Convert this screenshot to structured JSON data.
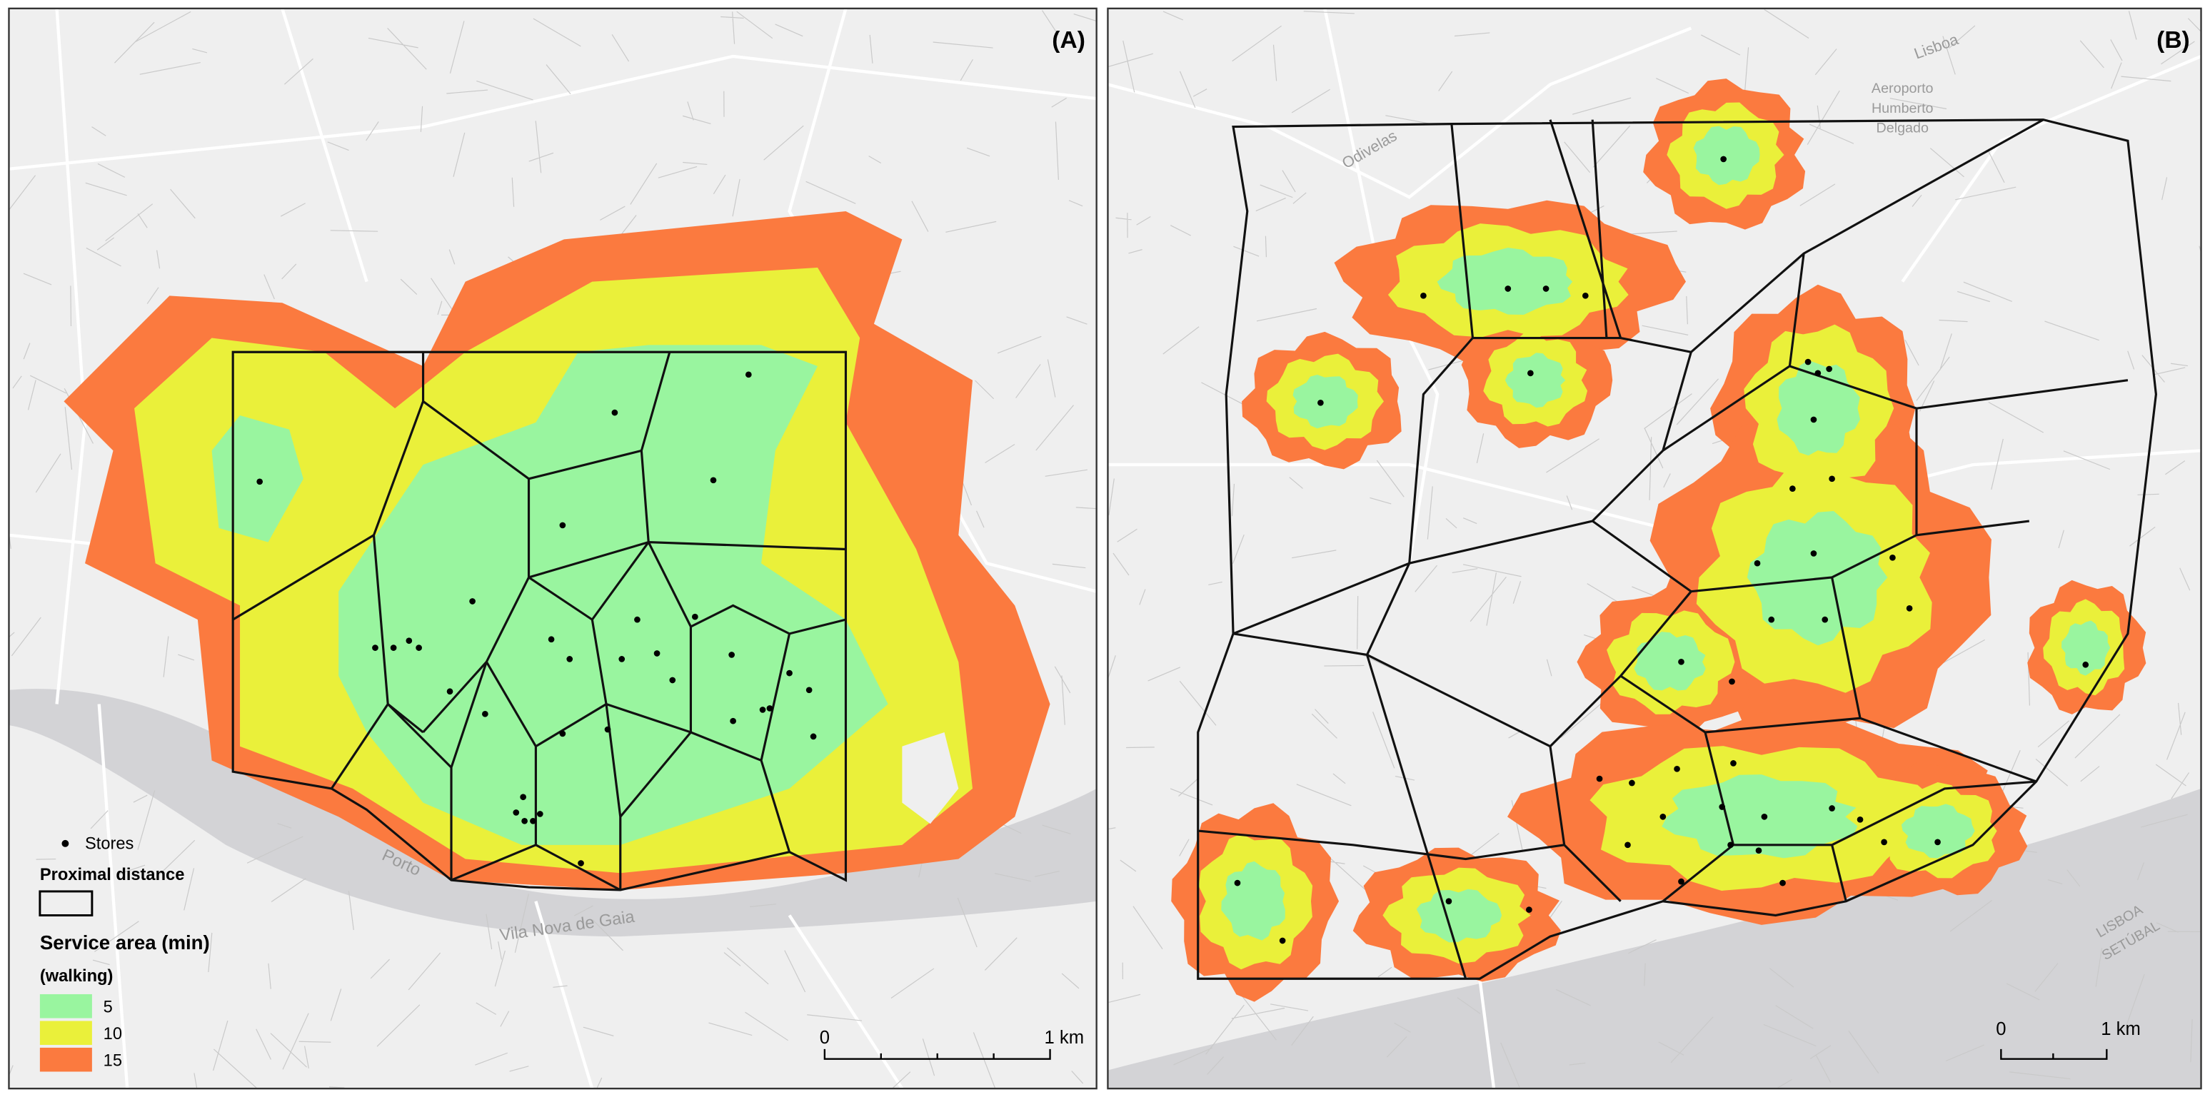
{
  "panels": [
    {
      "label": "(A)",
      "map_labels": [
        "Porto",
        "Vila Nova de Gaia"
      ],
      "scale_bar": {
        "start": "0",
        "end": "1 km"
      }
    },
    {
      "label": "(B)",
      "map_labels": [
        "Lisboa",
        "Aeroporto",
        "Humberto",
        "Delgado",
        "Odivelas",
        "LISBOA",
        "SETÚBAL"
      ],
      "scale_bar": {
        "start": "0",
        "end": "1 km"
      }
    }
  ],
  "legend": {
    "stores": "Stores",
    "proximal": "Proximal distance",
    "service_title": "Service area (min)",
    "service_subtitle": "(walking)",
    "classes": [
      {
        "label": "5",
        "color": "#99f59f"
      },
      {
        "label": "10",
        "color": "#eaf03a"
      },
      {
        "label": "15",
        "color": "#fb7a3f"
      }
    ]
  }
}
